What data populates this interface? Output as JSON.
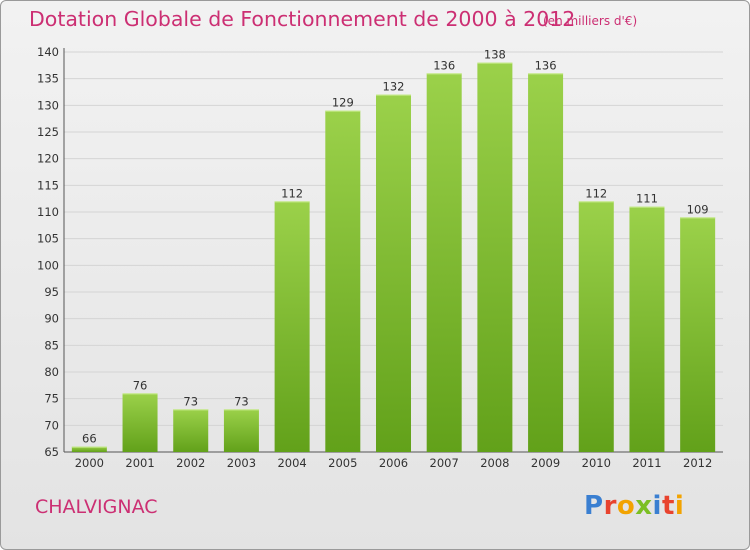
{
  "header": {
    "title": "Dotation Globale de Fonctionnement de 2000 à 2012",
    "subtitle": "(en milliers d'€)"
  },
  "footer": {
    "commune": "CHALVIGNAC",
    "brand": "Proxiti",
    "brand_colors": [
      "#3a7fd1",
      "#e8432e",
      "#f2a300",
      "#7bbf23",
      "#3a7fd1",
      "#e8432e",
      "#f2a300"
    ]
  },
  "colors": {
    "bar_light": "#9bd14a",
    "bar_dark": "#62a11a",
    "title": "#cc2f73",
    "grid": "#d4d4d4"
  },
  "chart_data": {
    "type": "bar",
    "title": "Dotation Globale de Fonctionnement de 2000 à 2012",
    "subtitle": "(en milliers d'€)",
    "xlabel": "",
    "ylabel": "",
    "categories": [
      "2000",
      "2001",
      "2002",
      "2003",
      "2004",
      "2005",
      "2006",
      "2007",
      "2008",
      "2009",
      "2010",
      "2011",
      "2012"
    ],
    "values": [
      66,
      76,
      73,
      73,
      112,
      129,
      132,
      136,
      138,
      136,
      112,
      111,
      109
    ],
    "ylim": [
      65,
      140
    ],
    "yticks": [
      65,
      70,
      75,
      80,
      85,
      90,
      95,
      100,
      105,
      110,
      115,
      120,
      125,
      130,
      135,
      140
    ],
    "grid": true,
    "legend": "none"
  }
}
